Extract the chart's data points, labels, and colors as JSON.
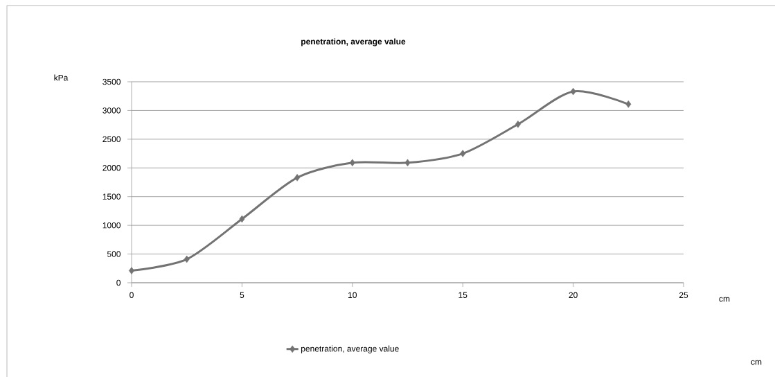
{
  "chart_data": {
    "type": "line",
    "title": "penetration, average value",
    "xlabel": "cm",
    "ylabel": "kPa",
    "x": [
      0,
      2.5,
      5,
      7.5,
      10,
      12.5,
      15,
      17.5,
      20,
      22.5
    ],
    "series": [
      {
        "name": "penetration, average value",
        "color": "#737373",
        "values": [
          210,
          410,
          1110,
          1830,
          2090,
          2090,
          2250,
          2760,
          3330,
          3110
        ]
      }
    ],
    "xlim": [
      0,
      25
    ],
    "xticks": [
      0,
      5,
      10,
      15,
      20,
      25
    ],
    "ylim": [
      0,
      3500
    ],
    "yticks": [
      0,
      500,
      1000,
      1500,
      2000,
      2500,
      3000,
      3500
    ],
    "grid": "y",
    "legend": "bottom",
    "marker": "diamond",
    "annotations": [
      "cm"
    ]
  }
}
